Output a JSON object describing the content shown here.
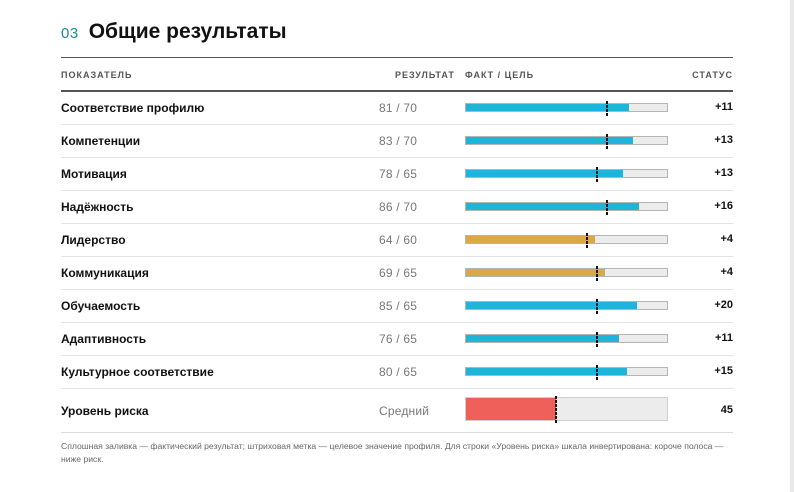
{
  "section": {
    "number": "03",
    "title": "Общие результаты"
  },
  "table": {
    "headers": {
      "metric": "ПОКАЗАТЕЛЬ",
      "result": "РЕЗУЛЬТАТ",
      "bar": "ФАКТ / ЦЕЛЬ",
      "status": "СТАТУС"
    },
    "scale_max": 100,
    "colors": {
      "good": "#1fb5d8",
      "warn": "#dba848",
      "risk": "#f0605a"
    },
    "rows": [
      {
        "name": "Соответствие профилю",
        "result": "81 / 70",
        "actual": 81,
        "target": 70,
        "status": "+11",
        "tone": "good"
      },
      {
        "name": "Компетенции",
        "result": "83 / 70",
        "actual": 83,
        "target": 70,
        "status": "+13",
        "tone": "good"
      },
      {
        "name": "Мотивация",
        "result": "78 / 65",
        "actual": 78,
        "target": 65,
        "status": "+13",
        "tone": "good"
      },
      {
        "name": "Надёжность",
        "result": "86 / 70",
        "actual": 86,
        "target": 70,
        "status": "+16",
        "tone": "good"
      },
      {
        "name": "Лидерство",
        "result": "64 / 60",
        "actual": 64,
        "target": 60,
        "status": "+4",
        "tone": "warn"
      },
      {
        "name": "Коммуникация",
        "result": "69 / 65",
        "actual": 69,
        "target": 65,
        "status": "+4",
        "tone": "warn"
      },
      {
        "name": "Обучаемость",
        "result": "85 / 65",
        "actual": 85,
        "target": 65,
        "status": "+20",
        "tone": "good"
      },
      {
        "name": "Адаптивность",
        "result": "76 / 65",
        "actual": 76,
        "target": 65,
        "status": "+11",
        "tone": "good"
      },
      {
        "name": "Культурное соответствие",
        "result": "80 / 65",
        "actual": 80,
        "target": 65,
        "status": "+15",
        "tone": "good"
      }
    ],
    "risk": {
      "name": "Уровень риска",
      "result": "Средний",
      "actual": 45,
      "target": 45,
      "status": "45",
      "tone": "bad"
    }
  },
  "footnote": "Сплошная заливка — фактический результат; штриховая метка — целевое значение профиля. Для строки «Уровень риска» шкала инвертирована: короче полоса — ниже риск."
}
